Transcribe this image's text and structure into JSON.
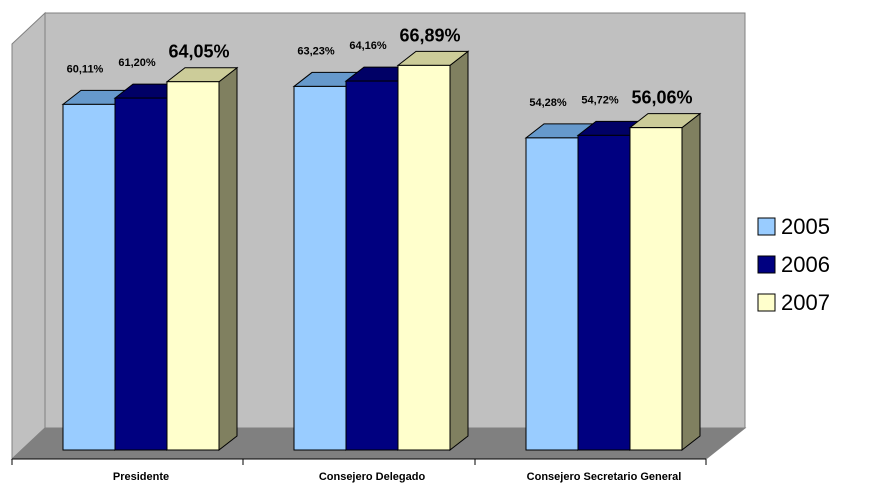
{
  "chart_data": {
    "type": "bar",
    "categories": [
      "Presidente",
      "Consejero Delegado",
      "Consejero Secretario General"
    ],
    "series": [
      {
        "name": "2005",
        "values": [
          60.11,
          63.23,
          54.28
        ],
        "labels": [
          "60,11%",
          "63,23%",
          "54,28%"
        ],
        "color": "#99ccff"
      },
      {
        "name": "2006",
        "values": [
          61.2,
          64.16,
          54.72
        ],
        "labels": [
          "61,20%",
          "64,16%",
          "54,72%"
        ],
        "color": "#000080"
      },
      {
        "name": "2007",
        "values": [
          64.05,
          66.89,
          56.06
        ],
        "labels": [
          "64,05%",
          "66,89%",
          "56,06%"
        ],
        "color": "#ffffcc"
      }
    ],
    "legend": {
      "position": "right",
      "entries": [
        "2005",
        "2006",
        "2007"
      ]
    },
    "grid": false,
    "three_d": true,
    "wall_color": "#c0c0c0",
    "floor_color": "#808080"
  }
}
